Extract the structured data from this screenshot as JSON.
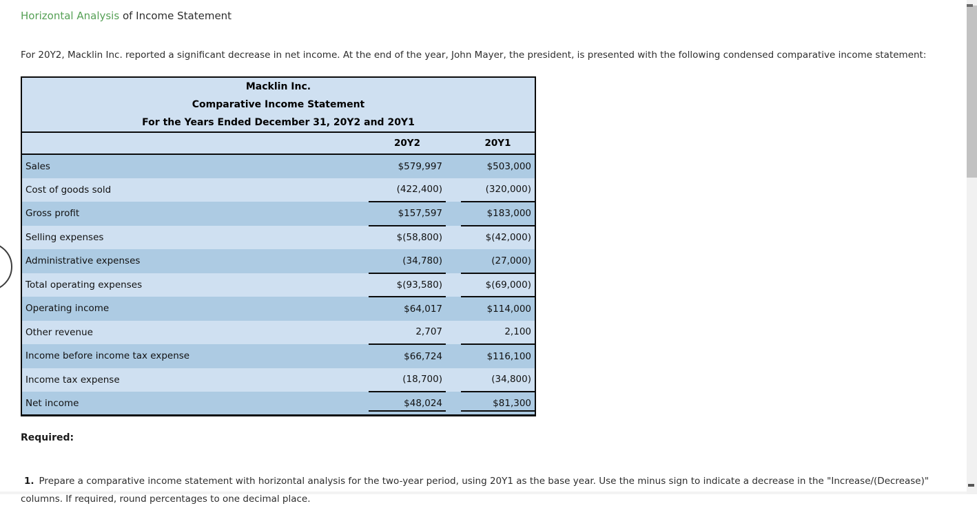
{
  "page": {
    "heading": {
      "link_text": "Horizontal Analysis",
      "rest_text": " of Income Statement"
    },
    "intro": "For 20Y2, Macklin Inc. reported a significant decrease in net income. At the end of the year, John Mayer, the president, is presented with the following condensed comparative income statement:",
    "required_label": "Required:",
    "item1_number": "1.",
    "item1_text": "Prepare a comparative income statement with horizontal analysis for the two-year period, using 20Y1 as the base year. Use the minus sign to indicate a decrease in the \"Increase/(Decrease)\" columns. If required, round percentages to one decimal place."
  },
  "table": {
    "title_lines": [
      "Macklin Inc.",
      "Comparative Income Statement",
      "For the Years Ended December 31, 20Y2 and 20Y1"
    ],
    "col_headers": [
      "20Y2",
      "20Y1"
    ],
    "rows": [
      {
        "label": "Sales",
        "y2": "$579,997",
        "y1": "$503,000"
      },
      {
        "label": "Cost of goods sold",
        "y2": "(422,400)",
        "y1": "(320,000)"
      },
      {
        "label": "Gross profit",
        "y2": "$157,597",
        "y1": "$183,000"
      },
      {
        "label": "Selling expenses",
        "y2": "$(58,800)",
        "y1": "$(42,000)"
      },
      {
        "label": "Administrative expenses",
        "y2": "(34,780)",
        "y1": "(27,000)"
      },
      {
        "label": "Total operating expenses",
        "y2": "$(93,580)",
        "y1": "$(69,000)"
      },
      {
        "label": "Operating income",
        "y2": "$64,017",
        "y1": "$114,000"
      },
      {
        "label": "Other revenue",
        "y2": "2,707",
        "y1": "2,100"
      },
      {
        "label": "Income before income tax expense",
        "y2": "$66,724",
        "y1": "$116,100"
      },
      {
        "label": "Income tax expense",
        "y2": "(18,700)",
        "y1": "(34,800)"
      },
      {
        "label": "Net income",
        "y2": "$48,024",
        "y1": "$81,300"
      }
    ]
  },
  "colors": {
    "link-green": "#55a055",
    "row-dark": "#adcbe3",
    "row-light": "#cfe0f1",
    "header-bg": "#cfe0f1",
    "table-border": "#0a0a0a",
    "scroll-thumb": "#c2c2c2",
    "scroll-track": "#f1f1f1"
  }
}
